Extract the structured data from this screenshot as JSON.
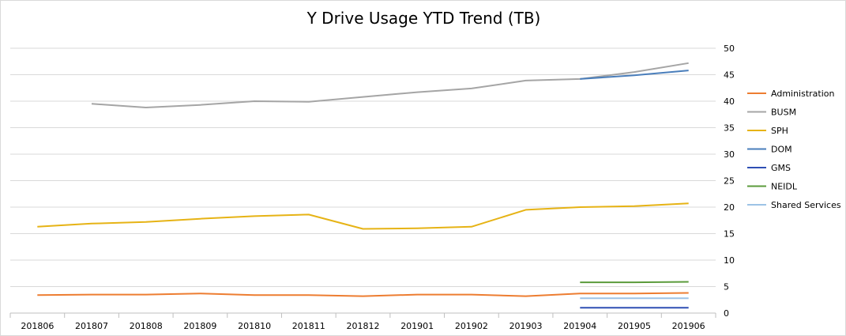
{
  "chart_data": {
    "type": "line",
    "title": "Y Drive Usage YTD Trend (TB)",
    "categories": [
      "201806",
      "201807",
      "201808",
      "201809",
      "201810",
      "201811",
      "201812",
      "201901",
      "201902",
      "201903",
      "201904",
      "201905",
      "201906"
    ],
    "ylim": [
      0,
      50
    ],
    "ytick_step": 5,
    "y_axis_side": "right",
    "grid": true,
    "legend_position": "right",
    "series": [
      {
        "name": "Administration",
        "color": "#ED7D31",
        "values": [
          3.4,
          3.5,
          3.5,
          3.7,
          3.4,
          3.4,
          3.2,
          3.5,
          3.5,
          3.2,
          3.7,
          3.7,
          3.8
        ]
      },
      {
        "name": "BUSM",
        "color": "#A5A5A5",
        "values": [
          null,
          39.5,
          38.8,
          39.3,
          40.0,
          39.9,
          40.8,
          41.7,
          42.4,
          43.9,
          44.2,
          45.5,
          47.2
        ]
      },
      {
        "name": "SPH",
        "color": "#E6B315",
        "values": [
          16.3,
          16.9,
          17.2,
          17.8,
          18.3,
          18.6,
          15.9,
          16.0,
          16.3,
          19.5,
          20.0,
          20.2,
          20.7
        ]
      },
      {
        "name": "DOM",
        "color": "#4A7EBB",
        "values": [
          null,
          null,
          null,
          null,
          null,
          null,
          null,
          null,
          null,
          null,
          44.2,
          44.9,
          45.8
        ]
      },
      {
        "name": "GMS",
        "color": "#2F4FB4",
        "values": [
          null,
          null,
          null,
          null,
          null,
          null,
          null,
          null,
          null,
          null,
          1.0,
          1.0,
          1.0
        ]
      },
      {
        "name": "NEIDL",
        "color": "#5B9B3B",
        "values": [
          null,
          null,
          null,
          null,
          null,
          null,
          null,
          null,
          null,
          null,
          5.8,
          5.8,
          5.9
        ]
      },
      {
        "name": "Shared Services",
        "color": "#9DC3E6",
        "values": [
          null,
          null,
          null,
          null,
          null,
          null,
          null,
          null,
          null,
          null,
          2.8,
          2.8,
          2.8
        ]
      }
    ]
  }
}
